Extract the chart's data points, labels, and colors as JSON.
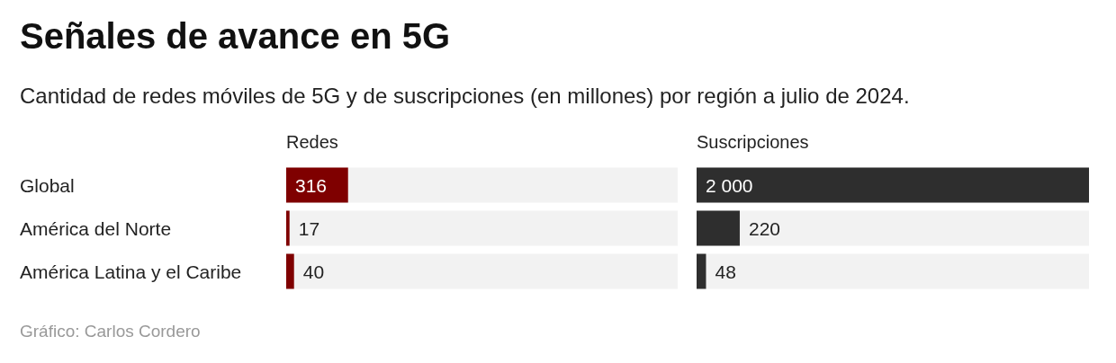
{
  "chart_data": [
    {
      "type": "other",
      "title": "Señales de avance en 5G",
      "subtitle": "Cantidad de redes móviles de 5G y de suscripciones (en millones) por región a julio de 2024.",
      "annotations": [
        "Gráfico: Carlos Cordero"
      ]
    },
    {
      "type": "bar",
      "orientation": "horizontal",
      "title": "Redes",
      "categories": [
        "Global",
        "América del Norte",
        "América Latina y el Caribe"
      ],
      "values": [
        316,
        17,
        40
      ],
      "color": "#7f0000",
      "data_labels": true
    },
    {
      "type": "bar",
      "orientation": "horizontal",
      "title": "Suscripciones",
      "categories": [
        null,
        null,
        null
      ],
      "values": [
        2000,
        220,
        48
      ],
      "color": "#2e2e2e",
      "value_labels": [
        "2 000",
        "220",
        "48"
      ]
    }
  ]
}
